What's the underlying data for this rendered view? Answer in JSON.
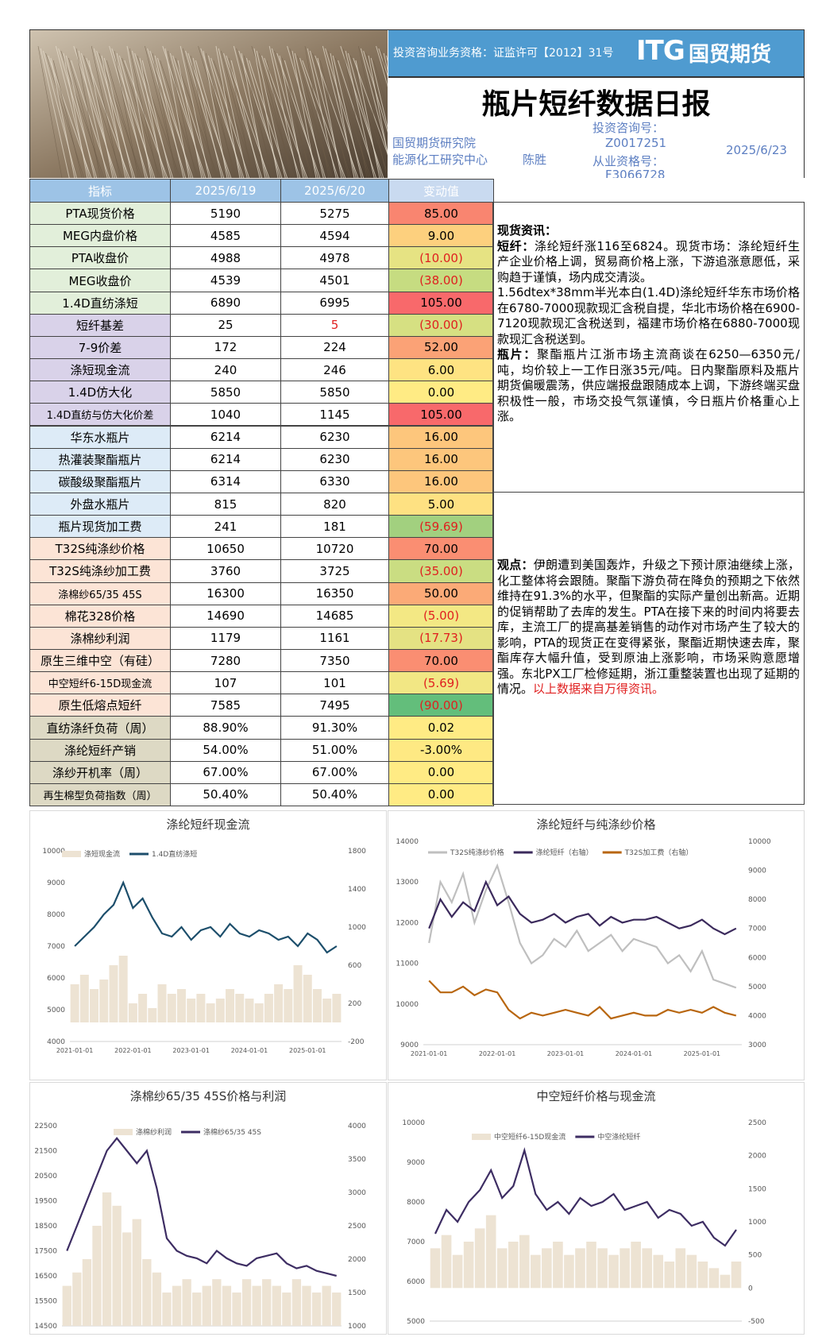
{
  "header": {
    "license": "投资咨询业务资格：证监许可【2012】31号",
    "logo": "ITG",
    "logo_cn": "国贸期货",
    "title": "瓶片短纤数据日报",
    "dept1": "国贸期货研究院",
    "dept2": "能源化工研究中心",
    "analyst": "陈胜",
    "inv_label": "投资咨询号：",
    "inv_no": "Z0017251",
    "qual_label": "从业资格号：",
    "qual_no": "F3066728",
    "date": "2025/6/23"
  },
  "table": {
    "columns": [
      "指标",
      "2025/6/19",
      "2025/6/20",
      "变动值"
    ],
    "rows": [
      [
        "PTA现货价格",
        "5190",
        "5275",
        "85.00"
      ],
      [
        "MEG内盘价格",
        "4585",
        "4594",
        "9.00"
      ],
      [
        "PTA收盘价",
        "4988",
        "4978",
        "(10.00)"
      ],
      [
        "MEG收盘价",
        "4539",
        "4501",
        "(38.00)"
      ],
      [
        "1.4D直纺涤短",
        "6890",
        "6995",
        "105.00"
      ],
      [
        "短纤基差",
        "25",
        "5",
        "(30.00)"
      ],
      [
        "7-9价差",
        "172",
        "224",
        "52.00"
      ],
      [
        "涤短现金流",
        "240",
        "246",
        "6.00"
      ],
      [
        "1.4D仿大化",
        "5850",
        "5850",
        "0.00"
      ],
      [
        "1.4D直纺与仿大化价差",
        "1040",
        "1145",
        "105.00"
      ],
      [
        "华东水瓶片",
        "6214",
        "6230",
        "16.00"
      ],
      [
        "热灌装聚酯瓶片",
        "6214",
        "6230",
        "16.00"
      ],
      [
        "碳酸级聚酯瓶片",
        "6314",
        "6330",
        "16.00"
      ],
      [
        "外盘水瓶片",
        "815",
        "820",
        "5.00"
      ],
      [
        "瓶片现货加工费",
        "241",
        "181",
        "(59.69)"
      ],
      [
        "T32S纯涤纱价格",
        "10650",
        "10720",
        "70.00"
      ],
      [
        "T32S纯涤纱加工费",
        "3760",
        "3725",
        "(35.00)"
      ],
      [
        "涤棉纱65/35 45S",
        "16300",
        "16350",
        "50.00"
      ],
      [
        "棉花328价格",
        "14690",
        "14685",
        "(5.00)"
      ],
      [
        "涤棉纱利润",
        "1179",
        "1161",
        "(17.73)"
      ],
      [
        "原生三维中空（有硅）",
        "7280",
        "7350",
        "70.00"
      ],
      [
        "中空短纤6-15D现金流",
        "107",
        "101",
        "(5.69)"
      ],
      [
        "原生低熔点短纤",
        "7585",
        "7495",
        "(90.00)"
      ],
      [
        "直纺涤纤负荷（周）",
        "88.90%",
        "91.30%",
        "0.02"
      ],
      [
        "涤纶短纤产销",
        "54.00%",
        "51.00%",
        "-3.00%"
      ],
      [
        "涤纱开机率（周）",
        "67.00%",
        "67.00%",
        "0.00"
      ],
      [
        "再生棉型负荷指数（周）",
        "50.40%",
        "50.40%",
        "0.00"
      ]
    ]
  },
  "news": {
    "heading": "现货资讯：",
    "items": [
      {
        "label": "短纤：",
        "text": "涤纶短纤涨116至6824。现货市场：涤纶短纤生产企业价格上调，贸易商价格上涨，下游追涨意愿低，采购趋于谨慎，场内成交清淡。"
      },
      {
        "text": "1.56dtex*38mm半光本白(1.4D)涤纶短纤华东市场价格在6780-7000现款现汇含税自提，华北市场价格在6900-7120现款现汇含税送到，福建市场价格在6880-7000现款现汇含税送到。"
      },
      {
        "label": "瓶片：",
        "text": "聚酯瓶片江浙市场主流商谈在6250—6350元/吨，均价较上一工作日涨35元/吨。日内聚酯原料及瓶片期货偏暖震荡，供应端报盘跟随成本上调，下游终端买盘积极性一般，市场交投气氛谨慎，今日瓶片价格重心上涨。"
      }
    ]
  },
  "view": {
    "label": "观点：",
    "text": "伊朗遭到美国轰炸，升级之下预计原油继续上涨，化工整体将会跟随。聚酯下游负荷在降负的预期之下依然维持在91.3%的水平，但聚酯的实际产量创出新高。近期的促销帮助了去库的发生。PTA在接下来的时间内将要去库，主流工厂的提高基差销售的动作对市场产生了较大的影响，PTA的现货正在变得紧张，聚酯近期快速去库，聚酯库存大幅升值，受到原油上涨影响，市场采购意愿增强。东北PX工厂检修延期，浙江重整装置也出现了延期的情况。",
    "source": "以上数据来自万得资讯。"
  },
  "chart_data": [
    {
      "type": "line",
      "title": "涤纶短纤现金流",
      "categories": [
        "2021-01-01",
        null,
        null,
        null,
        null,
        null,
        "2022-01-01",
        null,
        null,
        null,
        null,
        null,
        "2023-01-01",
        null,
        null,
        null,
        null,
        null,
        "2024-01-01",
        null,
        null,
        null,
        null,
        null,
        "2025-01-01",
        null,
        null,
        null
      ],
      "ylim": [
        4000,
        10000
      ],
      "yticks": [
        4000,
        5000,
        6000,
        7000,
        8000,
        9000,
        10000
      ],
      "y2lim": [
        -200,
        1800
      ],
      "y2ticks": [
        -200,
        200,
        600,
        1000,
        1400,
        1800
      ],
      "series": [
        {
          "name": "涤短现金流",
          "kind": "bar",
          "axis": "y2",
          "color": "#ede3d3",
          "values": [
            400,
            500,
            350,
            450,
            600,
            700,
            200,
            300,
            150,
            400,
            300,
            350,
            250,
            300,
            200,
            250,
            350,
            300,
            250,
            200,
            300,
            400,
            350,
            600,
            500,
            350,
            250,
            300
          ]
        },
        {
          "name": "1.4D直纺涤短",
          "color": "#1c4e6b",
          "values": [
            7000,
            7300,
            7600,
            8000,
            8300,
            9000,
            8200,
            8500,
            7900,
            7400,
            7300,
            7600,
            7200,
            7500,
            7600,
            7300,
            7700,
            7400,
            7300,
            7500,
            7400,
            7200,
            7300,
            7000,
            7400,
            7200,
            6800,
            7000
          ]
        }
      ]
    },
    {
      "type": "line",
      "title": "涤纶短纤与纯涤纱价格",
      "categories": [
        "2021-01-01",
        null,
        null,
        null,
        null,
        null,
        "2022-01-01",
        null,
        null,
        null,
        null,
        null,
        "2023-01-01",
        null,
        null,
        null,
        null,
        null,
        "2024-01-01",
        null,
        null,
        null,
        null,
        null,
        "2025-01-01",
        null,
        null,
        null
      ],
      "ylim": [
        9000,
        14000
      ],
      "yticks": [
        9000,
        10000,
        11000,
        12000,
        13000,
        14000
      ],
      "y2lim": [
        3000,
        10000
      ],
      "y2ticks": [
        3000,
        4000,
        5000,
        6000,
        7000,
        8000,
        9000,
        10000
      ],
      "series": [
        {
          "name": "T32S纯涤纱价格",
          "color": "#bfbfbf",
          "values": [
            11500,
            13000,
            12500,
            13200,
            12000,
            12800,
            13400,
            12500,
            11500,
            11000,
            11200,
            11600,
            11400,
            11800,
            11300,
            11500,
            11700,
            11300,
            11600,
            11500,
            11400,
            11000,
            11200,
            10800,
            11300,
            10600,
            10500,
            10400
          ]
        },
        {
          "name": "涤纶短纤（右轴）",
          "axis": "y2",
          "color": "#3b2a5c",
          "values": [
            7000,
            8000,
            7400,
            7900,
            7600,
            8600,
            7800,
            8100,
            7500,
            7200,
            7300,
            7500,
            7200,
            7400,
            7500,
            7100,
            7400,
            7200,
            7300,
            7300,
            7400,
            7200,
            7000,
            7100,
            7300,
            7000,
            6800,
            7000
          ]
        },
        {
          "name": "T32S加工费（右轴）",
          "axis": "y2",
          "color": "#b8660f",
          "values": [
            5200,
            4800,
            4800,
            5000,
            4700,
            4900,
            4800,
            4200,
            3900,
            4100,
            4000,
            4100,
            4200,
            4100,
            4000,
            4300,
            3900,
            4000,
            4100,
            4000,
            4000,
            4200,
            4100,
            4200,
            4100,
            4300,
            4100,
            4000
          ]
        }
      ]
    },
    {
      "type": "line",
      "title": "涤棉纱65/35 45S价格与利润",
      "categories": [
        null,
        null,
        null,
        null,
        null,
        null,
        null,
        null,
        null,
        null,
        null,
        null,
        null,
        null,
        null,
        null,
        null,
        null,
        null,
        null,
        null,
        null,
        null,
        null,
        null,
        null,
        null,
        null
      ],
      "ylim": [
        14500,
        22500
      ],
      "yticks": [
        14500,
        15500,
        16500,
        17500,
        18500,
        19500,
        20500,
        21500,
        22500
      ],
      "y2lim": [
        1000,
        4000
      ],
      "y2ticks": [
        1000,
        1500,
        2000,
        2500,
        3000,
        3500,
        4000
      ],
      "series": [
        {
          "name": "涤棉纱利润",
          "kind": "bar",
          "axis": "y2",
          "color": "#ede3d3",
          "values": [
            1600,
            1800,
            2000,
            2500,
            3000,
            2800,
            2400,
            2600,
            2000,
            1800,
            1500,
            1600,
            1700,
            1500,
            1600,
            1700,
            1600,
            1500,
            1700,
            1600,
            1700,
            1600,
            1500,
            1700,
            1600,
            1500,
            1600,
            1500
          ]
        },
        {
          "name": "涤棉纱65/35 45S",
          "color": "#3d2d63",
          "values": [
            17500,
            18500,
            19500,
            20500,
            21500,
            22000,
            21500,
            21000,
            21500,
            20000,
            18000,
            17500,
            17300,
            17200,
            17000,
            17500,
            17200,
            17000,
            16900,
            17200,
            17300,
            17400,
            17000,
            16800,
            16900,
            16700,
            16600,
            16500
          ]
        }
      ]
    },
    {
      "type": "line",
      "title": "中空短纤价格与现金流",
      "categories": [
        null,
        null,
        null,
        null,
        null,
        null,
        null,
        null,
        null,
        null,
        null,
        null,
        null,
        null,
        null,
        null,
        null,
        null,
        null,
        null,
        null,
        null,
        null,
        null,
        null,
        null,
        null,
        null
      ],
      "ylim": [
        5000,
        10000
      ],
      "yticks": [
        5000,
        6000,
        7000,
        8000,
        9000,
        10000
      ],
      "y2lim": [
        -500,
        2500
      ],
      "y2ticks": [
        -500,
        0,
        500,
        1000,
        1500,
        2000,
        2500
      ],
      "series": [
        {
          "name": "中空短纤6-15D现金流",
          "kind": "bar",
          "axis": "y2",
          "color": "#ede3d3",
          "values": [
            600,
            800,
            500,
            700,
            900,
            1100,
            600,
            700,
            800,
            500,
            600,
            700,
            500,
            600,
            700,
            600,
            500,
            600,
            700,
            600,
            500,
            400,
            600,
            500,
            400,
            300,
            200,
            400
          ]
        },
        {
          "name": "中空涤纶短纤",
          "color": "#3d2d63",
          "values": [
            7200,
            7800,
            7500,
            8000,
            8300,
            8800,
            8100,
            8400,
            9300,
            8200,
            7800,
            8000,
            7700,
            8100,
            7900,
            8000,
            8200,
            7800,
            7900,
            8000,
            7600,
            7800,
            7700,
            7400,
            7500,
            7100,
            6900,
            7300
          ]
        }
      ]
    }
  ]
}
